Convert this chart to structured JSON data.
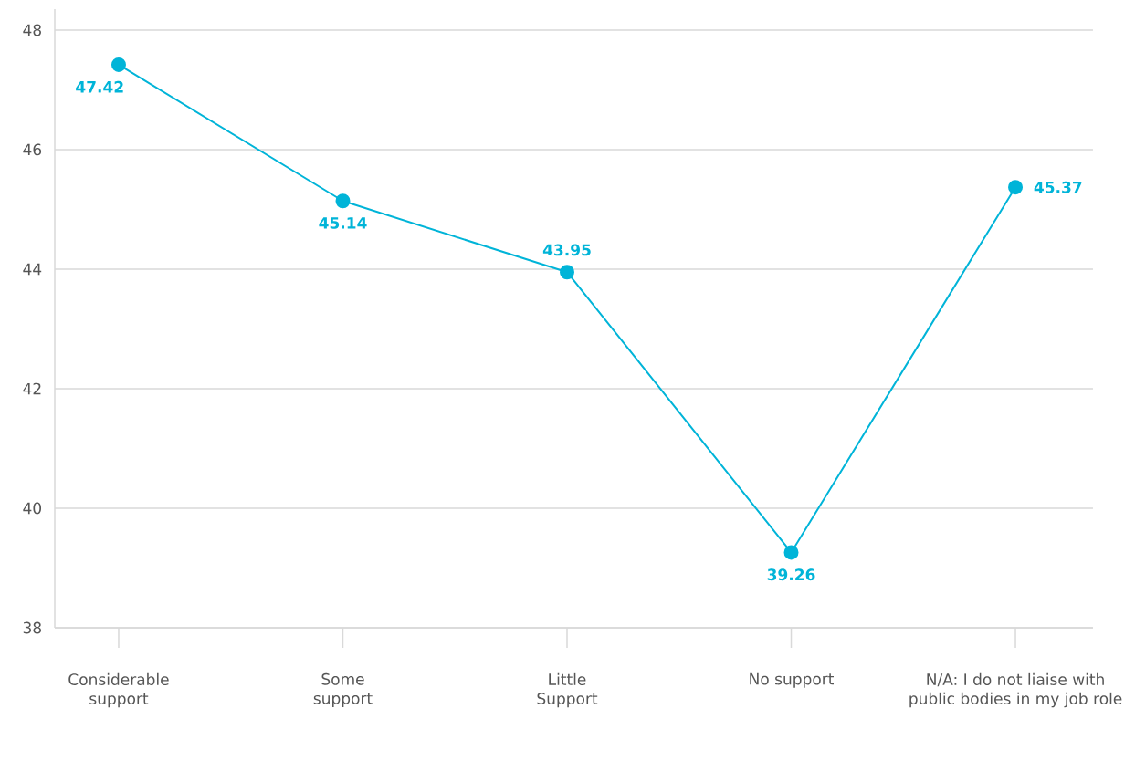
{
  "chart_data": {
    "type": "line",
    "categories": [
      "Considerable support",
      "Some support",
      "Little Support",
      "No support",
      "N/A: I do not liaise with public bodies in my job role"
    ],
    "values": [
      47.42,
      45.14,
      43.95,
      39.26,
      45.37
    ],
    "color": "#00b4d8",
    "ylim": [
      38,
      48.35
    ],
    "yticks": [
      38,
      40,
      42,
      44,
      46,
      48
    ],
    "grid": "y",
    "marker": "circle",
    "data_labels": true
  }
}
